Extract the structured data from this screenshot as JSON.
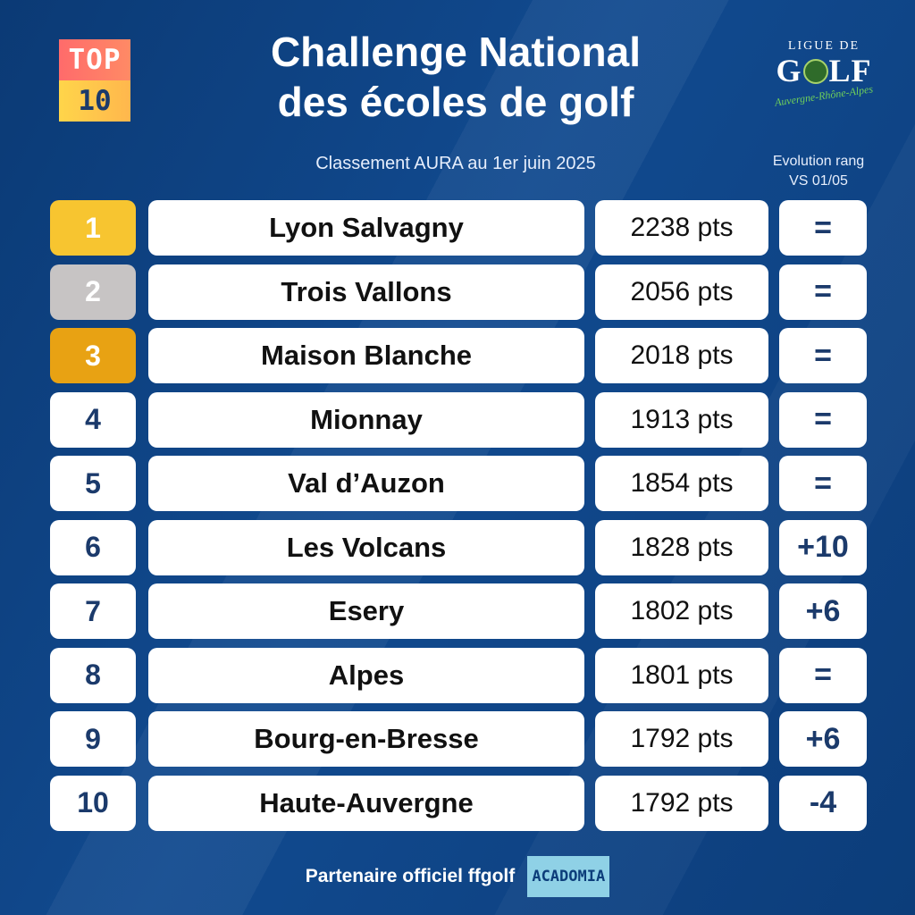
{
  "badge": {
    "top": "TOP",
    "bottom": "10"
  },
  "title_line1": "Challenge National",
  "title_line2": "des écoles de golf",
  "subtitle": "Classement AURA au 1er juin 2025",
  "evolution_header_line1": "Evolution rang",
  "evolution_header_line2": "VS 01/05",
  "logo": {
    "ligue": "LIGUE DE",
    "golf_g": "G",
    "golf_lf": "LF",
    "region": "Auvergne-Rhône-Alpes"
  },
  "colors": {
    "gold": "#f7c530",
    "silver": "#c7c4c4",
    "bronze": "#e8a213",
    "background": "#0d3f7e"
  },
  "rows": [
    {
      "rank": "1",
      "name": "Lyon Salvagny",
      "points": "2238 pts",
      "evolution": "="
    },
    {
      "rank": "2",
      "name": "Trois Vallons",
      "points": "2056 pts",
      "evolution": "="
    },
    {
      "rank": "3",
      "name": "Maison Blanche",
      "points": "2018 pts",
      "evolution": "="
    },
    {
      "rank": "4",
      "name": "Mionnay",
      "points": "1913 pts",
      "evolution": "="
    },
    {
      "rank": "5",
      "name": "Val d’Auzon",
      "points": "1854 pts",
      "evolution": "="
    },
    {
      "rank": "6",
      "name": "Les Volcans",
      "points": "1828 pts",
      "evolution": "+10"
    },
    {
      "rank": "7",
      "name": "Esery",
      "points": "1802 pts",
      "evolution": "+6"
    },
    {
      "rank": "8",
      "name": "Alpes",
      "points": "1801 pts",
      "evolution": "="
    },
    {
      "rank": "9",
      "name": "Bourg-en-Bresse",
      "points": "1792 pts",
      "evolution": "+6"
    },
    {
      "rank": "10",
      "name": "Haute-Auvergne",
      "points": "1792 pts",
      "evolution": "-4"
    }
  ],
  "footer": {
    "text": "Partenaire officiel ffgolf",
    "partner_logo": "ACADOMIA"
  }
}
